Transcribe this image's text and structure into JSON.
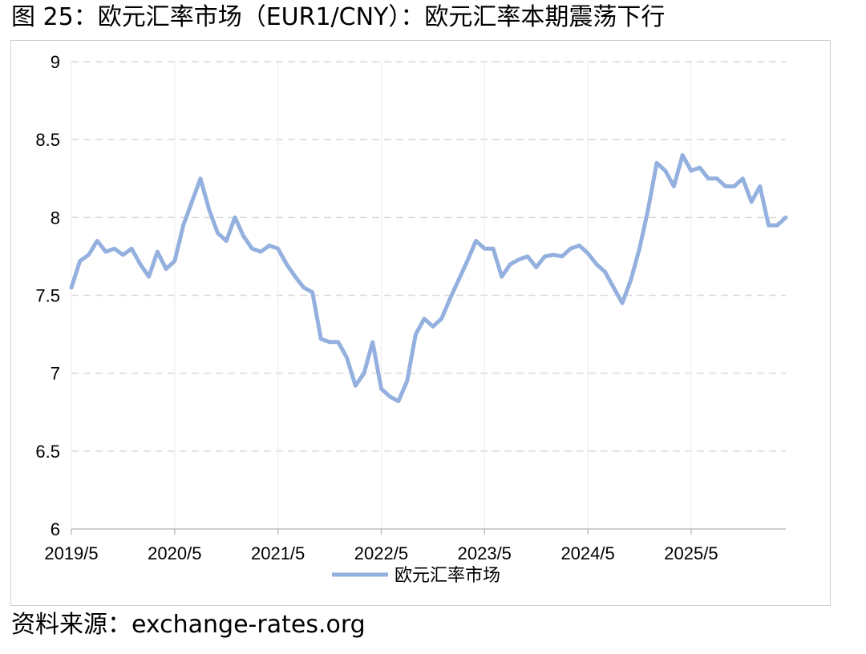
{
  "figure": {
    "title": "图 25：欧元汇率市场（EUR1/CNY）：欧元汇率本期震荡下行",
    "source": "资料来源：exchange-rates.org"
  },
  "colors": {
    "series": "#94B0DE",
    "grid": "#d9d9d9",
    "axis": "#bfbfbf"
  },
  "chart_data": {
    "type": "line",
    "title": "",
    "xlabel": "",
    "ylabel": "",
    "ylim": [
      6,
      9
    ],
    "yticks": [
      6,
      6.5,
      7,
      7.5,
      8,
      8.5,
      9
    ],
    "ytick_labels": [
      "6",
      "6.5",
      "7",
      "7.5",
      "8",
      "8.5",
      "9"
    ],
    "xtick_labels": [
      "2019/5",
      "2020/5",
      "2021/5",
      "2022/5",
      "2023/5",
      "2024/5",
      "2025/5"
    ],
    "x_range": [
      "2019-05",
      "2026-04"
    ],
    "grid": "horizontal dashed",
    "legend_position": "bottom",
    "series": [
      {
        "name": "欧元汇率市场",
        "x": [
          "2019-05",
          "2019-06",
          "2019-07",
          "2019-08",
          "2019-09",
          "2019-10",
          "2019-11",
          "2019-12",
          "2020-01",
          "2020-02",
          "2020-03",
          "2020-04",
          "2020-05",
          "2020-06",
          "2020-07",
          "2020-08",
          "2020-09",
          "2020-10",
          "2020-11",
          "2020-12",
          "2021-01",
          "2021-02",
          "2021-03",
          "2021-04",
          "2021-05",
          "2021-06",
          "2021-07",
          "2021-08",
          "2021-09",
          "2021-10",
          "2021-11",
          "2021-12",
          "2022-01",
          "2022-02",
          "2022-03",
          "2022-04",
          "2022-05",
          "2022-06",
          "2022-07",
          "2022-08",
          "2022-09",
          "2022-10",
          "2022-11",
          "2022-12",
          "2023-01",
          "2023-02",
          "2023-03",
          "2023-04",
          "2023-05",
          "2023-06",
          "2023-07",
          "2023-08",
          "2023-09",
          "2023-10",
          "2023-11",
          "2023-12",
          "2024-01",
          "2024-02",
          "2024-03",
          "2024-04",
          "2024-05",
          "2024-06",
          "2024-07",
          "2024-08",
          "2024-09",
          "2024-10",
          "2024-11",
          "2024-12",
          "2025-01",
          "2025-02",
          "2025-03",
          "2025-04",
          "2025-05",
          "2025-06",
          "2025-07",
          "2025-08",
          "2025-09",
          "2025-10",
          "2025-11",
          "2025-12",
          "2026-01",
          "2026-02",
          "2026-03",
          "2026-04"
        ],
        "values": [
          7.55,
          7.72,
          7.76,
          7.85,
          7.78,
          7.8,
          7.76,
          7.8,
          7.7,
          7.62,
          7.78,
          7.67,
          7.72,
          7.95,
          8.1,
          8.25,
          8.05,
          7.9,
          7.85,
          8.0,
          7.88,
          7.8,
          7.78,
          7.82,
          7.8,
          7.7,
          7.62,
          7.55,
          7.52,
          7.22,
          7.2,
          7.2,
          7.1,
          6.92,
          7.0,
          7.2,
          6.9,
          6.85,
          6.82,
          6.95,
          7.25,
          7.35,
          7.3,
          7.35,
          7.48,
          7.6,
          7.72,
          7.85,
          7.8,
          7.8,
          7.62,
          7.7,
          7.73,
          7.75,
          7.68,
          7.75,
          7.76,
          7.75,
          7.8,
          7.82,
          7.77,
          7.7,
          7.65,
          7.55,
          7.45,
          7.6,
          7.8,
          8.05,
          8.35,
          8.3,
          8.2,
          8.4,
          8.3,
          8.32,
          8.25,
          8.25,
          8.2,
          8.2,
          8.25,
          8.1,
          8.2,
          7.95,
          7.95,
          8.0
        ]
      }
    ]
  }
}
